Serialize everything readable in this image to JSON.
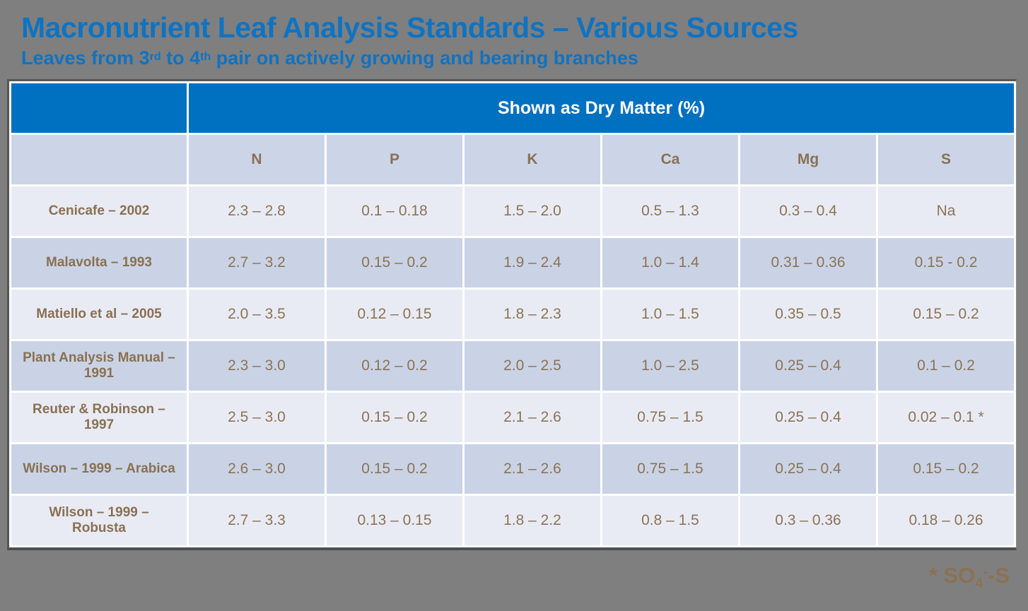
{
  "colors": {
    "background": "#7F7F7F",
    "accent_blue": "#0070C0",
    "title_blue": "#0E73C3",
    "text_brown": "#8C7355",
    "row_light": "#E9EBF4",
    "row_dark": "#C9D3E5",
    "grid_white": "#FFFFFF",
    "table_border_dark": "#565656"
  },
  "title": "Macronutrient Leaf Analysis Standards – Various Sources",
  "subtitle": {
    "part1": "Leaves from 3",
    "sup1": "rd",
    "part2": " to 4",
    "sup2": "th",
    "part3": " pair on actively growing and bearing branches"
  },
  "table": {
    "header_title": "Shown as Dry Matter (%)",
    "columns": [
      "N",
      "P",
      "K",
      "Ca",
      "Mg",
      "S"
    ],
    "rows": [
      {
        "label": "Cenicafe – 2002",
        "values": [
          "2.3 – 2.8",
          "0.1 – 0.18",
          "1.5 – 2.0",
          "0.5 – 1.3",
          "0.3 – 0.4",
          "Na"
        ]
      },
      {
        "label": "Malavolta – 1993",
        "values": [
          "2.7 – 3.2",
          "0.15 – 0.2",
          "1.9 – 2.4",
          "1.0 – 1.4",
          "0.31 – 0.36",
          "0.15 - 0.2"
        ]
      },
      {
        "label": "Matiello et al – 2005",
        "values": [
          "2.0 – 3.5",
          "0.12 – 0.15",
          "1.8 – 2.3",
          "1.0 – 1.5",
          "0.35 – 0.5",
          "0.15 – 0.2"
        ]
      },
      {
        "label": "Plant Analysis Manual – 1991",
        "values": [
          "2.3 – 3.0",
          "0.12 – 0.2",
          "2.0 – 2.5",
          "1.0 – 2.5",
          "0.25 – 0.4",
          "0.1 – 0.2"
        ]
      },
      {
        "label": "Reuter & Robinson – 1997",
        "values": [
          "2.5 – 3.0",
          "0.15 – 0.2",
          "2.1 – 2.6",
          "0.75 – 1.5",
          "0.25 – 0.4",
          "0.02 – 0.1  *"
        ]
      },
      {
        "label": "Wilson – 1999 – Arabica",
        "values": [
          "2.6 – 3.0",
          "0.15 – 0.2",
          "2.1 – 2.6",
          "0.75 – 1.5",
          "0.25 – 0.4",
          "0.15 – 0.2"
        ]
      },
      {
        "label": "Wilson – 1999 – Robusta",
        "values": [
          "2.7 – 3.3",
          "0.13 – 0.15",
          "1.8 – 2.2",
          "0.8 – 1.5",
          "0.3 – 0.36",
          "0.18 – 0.26"
        ]
      }
    ]
  },
  "footnote": {
    "lead": "* SO",
    "sub": "4",
    "sup": "-",
    "tail": "-S"
  }
}
